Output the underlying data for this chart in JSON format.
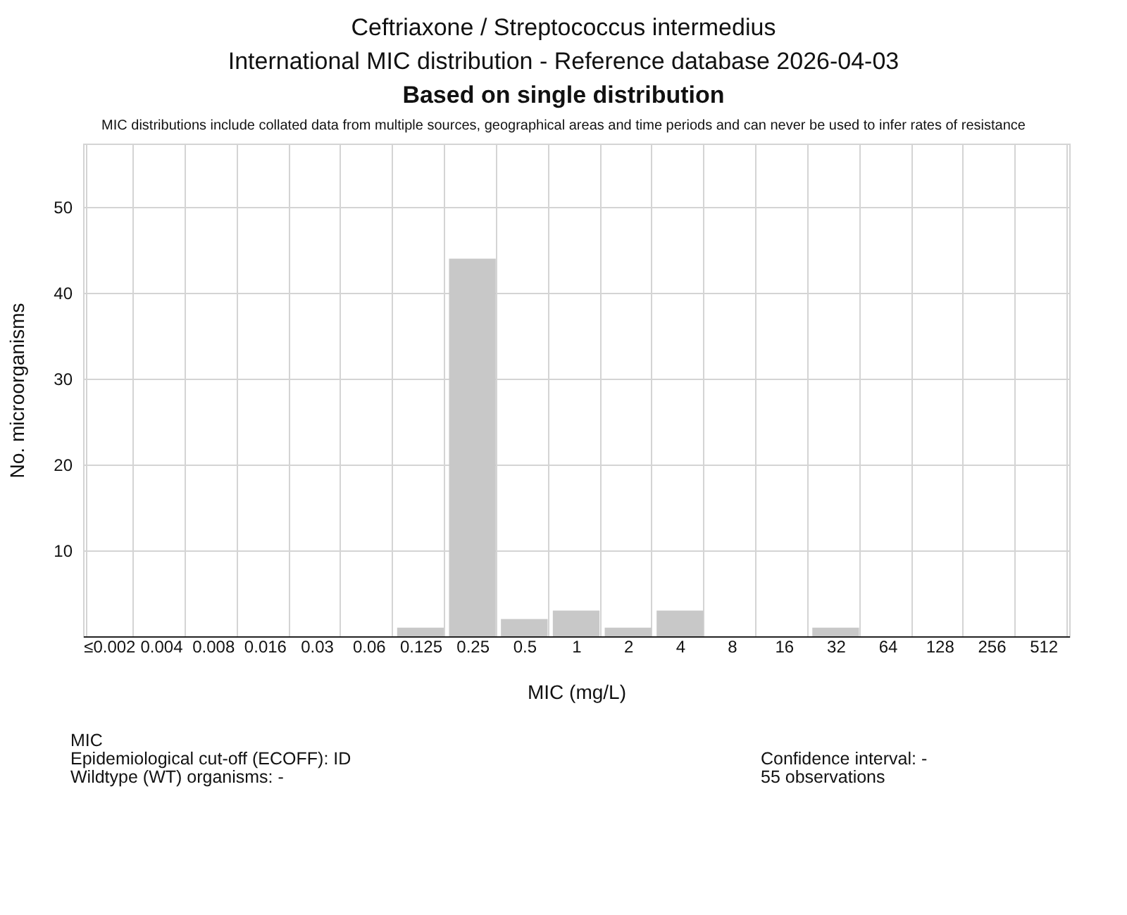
{
  "chart_data": {
    "type": "bar",
    "title": "Ceftriaxone / Streptococcus intermedius",
    "subtitle": "International MIC distribution - Reference database 2026-04-03",
    "annotations": [
      "Based on single distribution",
      "MIC distributions include collated data from multiple sources, geographical areas and time periods and can never be used to infer rates of resistance",
      "MIC",
      "Epidemiological cut-off (ECOFF): ID",
      "Wildtype (WT) organisms:  -",
      "Confidence interval: -",
      "55 observations"
    ],
    "xlabel": "MIC (mg/L)",
    "ylabel": "No. microorganisms",
    "categories": [
      "≤0.002",
      "0.004",
      "0.008",
      "0.016",
      "0.03",
      "0.06",
      "0.125",
      "0.25",
      "0.5",
      "1",
      "2",
      "4",
      "8",
      "16",
      "32",
      "64",
      "128",
      "256",
      "512"
    ],
    "values": [
      0,
      0,
      0,
      0,
      0,
      0,
      1,
      44,
      2,
      3,
      1,
      3,
      0,
      0,
      1,
      0,
      0,
      0,
      0
    ],
    "color": "#c8c8c8",
    "ylim": [
      0,
      57.4
    ],
    "yticks": [
      {
        "value": 0,
        "label": null
      },
      10,
      20,
      30,
      40,
      50
    ],
    "grid": true
  }
}
